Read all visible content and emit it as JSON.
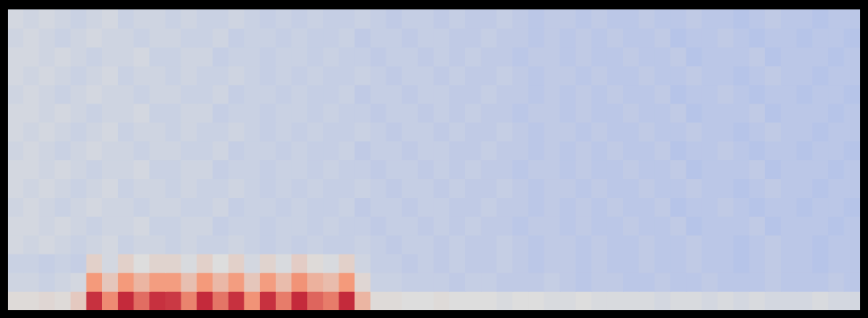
{
  "chart_data": {
    "type": "heatmap",
    "tick_labels": false,
    "grid": false,
    "color_range": [
      -80,
      0
    ],
    "cells": [
      [
        -42,
        -43,
        -42,
        -43,
        -44,
        -43,
        -42,
        -44,
        -43,
        -43,
        -44,
        -43,
        -44,
        -44,
        -43,
        -44,
        -45,
        -44,
        -45,
        -44,
        -45,
        -45,
        -44,
        -45,
        -46,
        -45,
        -45,
        -46,
        -45,
        -46,
        -46,
        -45,
        -46,
        -47,
        -46,
        -46,
        -47,
        -46,
        -47,
        -47,
        -46,
        -47,
        -47,
        -46,
        -47,
        -47,
        -48,
        -47,
        -46,
        -47,
        -47,
        -48,
        -47,
        -47
      ],
      [
        -43,
        -42,
        -43,
        -44,
        -43,
        -42,
        -43,
        -43,
        -44,
        -43,
        -43,
        -44,
        -44,
        -43,
        -45,
        -44,
        -44,
        -45,
        -44,
        -45,
        -45,
        -44,
        -46,
        -45,
        -45,
        -46,
        -45,
        -45,
        -46,
        -46,
        -45,
        -46,
        -46,
        -47,
        -46,
        -47,
        -46,
        -47,
        -46,
        -47,
        -47,
        -46,
        -48,
        -47,
        -47,
        -46,
        -47,
        -48,
        -47,
        -47,
        -48,
        -47,
        -47,
        -48
      ],
      [
        -42,
        -42,
        -43,
        -42,
        -43,
        -44,
        -43,
        -43,
        -42,
        -44,
        -44,
        -43,
        -43,
        -45,
        -44,
        -44,
        -45,
        -44,
        -44,
        -45,
        -44,
        -45,
        -45,
        -46,
        -45,
        -45,
        -46,
        -45,
        -46,
        -45,
        -46,
        -46,
        -47,
        -46,
        -46,
        -47,
        -46,
        -47,
        -47,
        -46,
        -47,
        -47,
        -46,
        -48,
        -47,
        -47,
        -47,
        -46,
        -48,
        -47,
        -47,
        -47,
        -48,
        -47
      ],
      [
        -42,
        -43,
        -42,
        -43,
        -44,
        -43,
        -42,
        -44,
        -43,
        -43,
        -44,
        -43,
        -44,
        -44,
        -43,
        -44,
        -45,
        -44,
        -45,
        -44,
        -45,
        -45,
        -44,
        -45,
        -46,
        -45,
        -45,
        -46,
        -45,
        -46,
        -46,
        -45,
        -46,
        -47,
        -46,
        -46,
        -47,
        -46,
        -47,
        -47,
        -46,
        -47,
        -47,
        -46,
        -47,
        -47,
        -48,
        -47,
        -46,
        -47,
        -47,
        -48,
        -47,
        -47
      ],
      [
        -43,
        -42,
        -43,
        -44,
        -43,
        -42,
        -43,
        -43,
        -44,
        -43,
        -43,
        -44,
        -44,
        -43,
        -45,
        -44,
        -44,
        -45,
        -44,
        -45,
        -45,
        -44,
        -46,
        -45,
        -45,
        -46,
        -45,
        -45,
        -46,
        -46,
        -45,
        -46,
        -46,
        -47,
        -46,
        -47,
        -46,
        -47,
        -46,
        -47,
        -47,
        -46,
        -48,
        -47,
        -47,
        -46,
        -47,
        -48,
        -47,
        -47,
        -48,
        -47,
        -47,
        -48
      ],
      [
        -42,
        -42,
        -43,
        -42,
        -43,
        -44,
        -43,
        -43,
        -42,
        -44,
        -44,
        -43,
        -43,
        -45,
        -44,
        -44,
        -45,
        -44,
        -44,
        -45,
        -44,
        -45,
        -45,
        -46,
        -45,
        -45,
        -46,
        -45,
        -46,
        -45,
        -46,
        -46,
        -47,
        -46,
        -46,
        -47,
        -46,
        -47,
        -47,
        -46,
        -47,
        -47,
        -46,
        -48,
        -47,
        -47,
        -47,
        -46,
        -48,
        -47,
        -47,
        -47,
        -48,
        -47
      ],
      [
        -42,
        -43,
        -42,
        -43,
        -44,
        -43,
        -42,
        -44,
        -43,
        -43,
        -44,
        -43,
        -44,
        -44,
        -43,
        -44,
        -45,
        -44,
        -45,
        -44,
        -45,
        -45,
        -44,
        -45,
        -46,
        -45,
        -45,
        -46,
        -45,
        -46,
        -46,
        -45,
        -46,
        -47,
        -46,
        -46,
        -47,
        -46,
        -47,
        -47,
        -46,
        -47,
        -47,
        -46,
        -47,
        -47,
        -48,
        -47,
        -46,
        -47,
        -47,
        -48,
        -47,
        -47
      ],
      [
        -43,
        -42,
        -43,
        -44,
        -43,
        -42,
        -43,
        -43,
        -44,
        -43,
        -43,
        -44,
        -44,
        -43,
        -45,
        -44,
        -44,
        -45,
        -44,
        -45,
        -45,
        -44,
        -46,
        -45,
        -45,
        -46,
        -45,
        -45,
        -46,
        -46,
        -45,
        -46,
        -46,
        -47,
        -46,
        -47,
        -46,
        -47,
        -46,
        -47,
        -47,
        -46,
        -48,
        -47,
        -47,
        -46,
        -47,
        -48,
        -47,
        -47,
        -48,
        -47,
        -47,
        -48
      ],
      [
        -42,
        -42,
        -43,
        -42,
        -43,
        -44,
        -43,
        -43,
        -42,
        -44,
        -44,
        -43,
        -43,
        -45,
        -44,
        -44,
        -45,
        -44,
        -44,
        -45,
        -44,
        -45,
        -45,
        -46,
        -45,
        -45,
        -46,
        -45,
        -46,
        -45,
        -46,
        -46,
        -47,
        -46,
        -46,
        -47,
        -46,
        -47,
        -47,
        -46,
        -47,
        -47,
        -46,
        -48,
        -47,
        -47,
        -47,
        -46,
        -48,
        -47,
        -47,
        -47,
        -48,
        -47
      ],
      [
        -42,
        -43,
        -42,
        -43,
        -44,
        -43,
        -42,
        -44,
        -43,
        -43,
        -44,
        -43,
        -44,
        -44,
        -43,
        -44,
        -45,
        -44,
        -45,
        -44,
        -45,
        -45,
        -44,
        -45,
        -46,
        -45,
        -45,
        -46,
        -45,
        -46,
        -46,
        -45,
        -46,
        -47,
        -46,
        -46,
        -47,
        -46,
        -47,
        -47,
        -46,
        -47,
        -47,
        -46,
        -47,
        -47,
        -48,
        -47,
        -46,
        -47,
        -47,
        -48,
        -47,
        -47
      ],
      [
        -43,
        -42,
        -43,
        -44,
        -43,
        -42,
        -43,
        -43,
        -44,
        -43,
        -43,
        -44,
        -44,
        -43,
        -45,
        -44,
        -44,
        -45,
        -44,
        -45,
        -45,
        -44,
        -46,
        -45,
        -45,
        -46,
        -45,
        -45,
        -46,
        -46,
        -45,
        -46,
        -46,
        -47,
        -46,
        -47,
        -46,
        -47,
        -46,
        -47,
        -47,
        -46,
        -48,
        -47,
        -47,
        -46,
        -47,
        -48,
        -47,
        -47,
        -48,
        -47,
        -47,
        -48
      ],
      [
        -42,
        -42,
        -43,
        -42,
        -43,
        -44,
        -43,
        -43,
        -42,
        -44,
        -44,
        -43,
        -43,
        -45,
        -44,
        -44,
        -45,
        -44,
        -44,
        -45,
        -44,
        -45,
        -45,
        -46,
        -45,
        -45,
        -46,
        -45,
        -46,
        -45,
        -46,
        -46,
        -47,
        -46,
        -46,
        -47,
        -46,
        -47,
        -47,
        -46,
        -47,
        -47,
        -46,
        -48,
        -47,
        -47,
        -47,
        -46,
        -48,
        -47,
        -47,
        -47,
        -48,
        -47
      ],
      [
        -42,
        -43,
        -42,
        -43,
        -44,
        -43,
        -42,
        -44,
        -43,
        -43,
        -44,
        -43,
        -44,
        -44,
        -43,
        -44,
        -45,
        -44,
        -45,
        -44,
        -45,
        -45,
        -44,
        -45,
        -46,
        -45,
        -45,
        -46,
        -45,
        -46,
        -46,
        -45,
        -46,
        -47,
        -46,
        -46,
        -47,
        -46,
        -47,
        -47,
        -46,
        -47,
        -47,
        -46,
        -47,
        -47,
        -48,
        -47,
        -46,
        -47,
        -47,
        -48,
        -47,
        -47
      ],
      [
        -44,
        -44,
        -45,
        -44,
        -45,
        -36,
        -42,
        -36,
        -40,
        -37,
        -37,
        -41,
        -36,
        -40,
        -36,
        -42,
        -37,
        -41,
        -35,
        -39,
        -41,
        -36,
        -43,
        -45,
        -45,
        -46,
        -45,
        -46,
        -45,
        -46,
        -46,
        -45,
        -46,
        -47,
        -46,
        -46,
        -47,
        -46,
        -47,
        -47,
        -46,
        -47,
        -47,
        -46,
        -47,
        -47,
        -48,
        -47,
        -46,
        -47,
        -47,
        -48,
        -47,
        -47
      ],
      [
        -43,
        -43,
        -44,
        -43,
        -42,
        -20,
        -33,
        -20,
        -28,
        -21,
        -21,
        -31,
        -20,
        -29,
        -21,
        -33,
        -21,
        -30,
        -19,
        -27,
        -30,
        -20,
        -38,
        -44,
        -44,
        -45,
        -45,
        -45,
        -46,
        -45,
        -45,
        -46,
        -46,
        -46,
        -45,
        -46,
        -47,
        -46,
        -46,
        -47,
        -47,
        -46,
        -47,
        -47,
        -46,
        -47,
        -47,
        -47,
        -46,
        -47,
        -47,
        -47,
        -46,
        -47
      ],
      [
        -39,
        -39,
        -38,
        -39,
        -34,
        -6,
        -18,
        -5,
        -14,
        -6,
        -7,
        -17,
        -5,
        -15,
        -6,
        -19,
        -6,
        -16,
        -5,
        -13,
        -16,
        -5,
        -28,
        -39,
        -39,
        -40,
        -40,
        -39,
        -40,
        -40,
        -40,
        -41,
        -40,
        -40,
        -41,
        -41,
        -40,
        -41,
        -41,
        -41,
        -41,
        -42,
        -41,
        -41,
        -42,
        -41,
        -42,
        -41,
        -42,
        -42,
        -42,
        -41,
        -42,
        -42
      ]
    ]
  }
}
